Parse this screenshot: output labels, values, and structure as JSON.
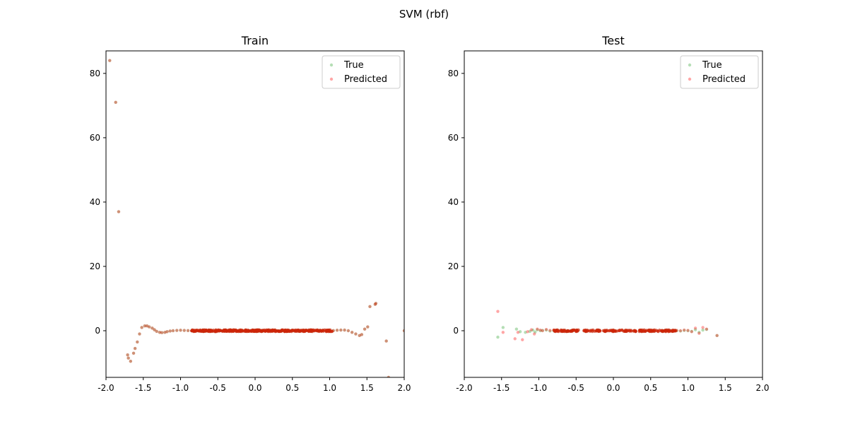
{
  "figure": {
    "title": "SVM (rbf)"
  },
  "colors": {
    "true": "#2ca02c",
    "predicted": "#ff0000"
  },
  "chart_data": [
    {
      "type": "scatter",
      "title": "Train",
      "xlim": [
        -2.0,
        2.0
      ],
      "ylim": [
        -14.5,
        87
      ],
      "xticks": [
        "-2.0",
        "-1.5",
        "-1.0",
        "-0.5",
        "0.0",
        "0.5",
        "1.0",
        "1.5",
        "2.0"
      ],
      "xtick_values": [
        -2.0,
        -1.5,
        -1.0,
        -0.5,
        0.0,
        0.5,
        1.0,
        1.5,
        2.0
      ],
      "yticks": [
        "0",
        "20",
        "40",
        "60",
        "80"
      ],
      "ytick_values": [
        0,
        20,
        40,
        60,
        80
      ],
      "legend": {
        "placement": "upper-right",
        "entries": [
          "True",
          "Predicted"
        ]
      },
      "series": [
        {
          "name": "True",
          "x": [
            -1.95,
            -1.87,
            -1.83,
            -1.71,
            -1.7,
            -1.67,
            -1.63,
            -1.61,
            -1.58,
            -1.55,
            -1.52,
            -1.48,
            -1.45,
            -1.42,
            -1.38,
            -1.35,
            -1.32,
            -1.28,
            -1.25,
            -1.21,
            -1.18,
            -1.14,
            -1.1,
            -1.05,
            -1.0,
            -0.95,
            -0.9,
            -0.85,
            1.05,
            1.1,
            1.15,
            1.2,
            1.25,
            1.3,
            1.35,
            1.4,
            1.43,
            1.47,
            1.51,
            1.54,
            1.61,
            1.62,
            1.76,
            1.79,
            2.0
          ],
          "y": [
            84,
            71,
            37,
            -7.5,
            -8.5,
            -9.5,
            -7,
            -5.5,
            -3.5,
            -1,
            1,
            1.5,
            1.5,
            1.2,
            0.8,
            0.3,
            -0.2,
            -0.5,
            -0.6,
            -0.5,
            -0.3,
            -0.1,
            0.0,
            0.1,
            0.15,
            0.1,
            0.05,
            0.0,
            0.05,
            0.15,
            0.2,
            0.2,
            0.0,
            -0.5,
            -1.0,
            -1.5,
            -1.2,
            0.5,
            1.2,
            7.5,
            8.2,
            8.5,
            -3.2,
            -14.5,
            0.0
          ]
        },
        {
          "name": "Predicted",
          "x": [
            -1.95,
            -1.87,
            -1.83,
            -1.71,
            -1.7,
            -1.67,
            -1.63,
            -1.61,
            -1.58,
            -1.55,
            -1.52,
            -1.48,
            -1.45,
            -1.42,
            -1.38,
            -1.35,
            -1.32,
            -1.28,
            -1.25,
            -1.21,
            -1.18,
            -1.14,
            -1.1,
            -1.05,
            -1.0,
            -0.95,
            -0.9,
            -0.85,
            1.05,
            1.1,
            1.15,
            1.2,
            1.25,
            1.3,
            1.35,
            1.4,
            1.43,
            1.47,
            1.51,
            1.54,
            1.61,
            1.62,
            1.76,
            1.79,
            2.0
          ],
          "y": [
            84,
            71,
            37,
            -7.5,
            -8.5,
            -9.5,
            -7,
            -5.5,
            -3.5,
            -1,
            1,
            1.5,
            1.5,
            1.2,
            0.8,
            0.3,
            -0.2,
            -0.5,
            -0.6,
            -0.5,
            -0.3,
            -0.1,
            0.0,
            0.1,
            0.15,
            0.1,
            0.05,
            0.0,
            0.05,
            0.15,
            0.2,
            0.2,
            0.0,
            -0.5,
            -1.0,
            -1.5,
            -1.2,
            0.5,
            1.2,
            7.5,
            8.2,
            8.5,
            -3.2,
            -14.5,
            0.0
          ]
        }
      ],
      "dense_band": {
        "x_range": [
          -0.85,
          1.05
        ],
        "y": 0.0,
        "description_series": [
          "True",
          "Predicted"
        ]
      }
    },
    {
      "type": "scatter",
      "title": "Test",
      "xlim": [
        -2.0,
        2.0
      ],
      "ylim": [
        -14.5,
        87
      ],
      "xticks": [
        "-2.0",
        "-1.5",
        "-1.0",
        "-0.5",
        "0.0",
        "0.5",
        "1.0",
        "1.5",
        "2.0"
      ],
      "xtick_values": [
        -2.0,
        -1.5,
        -1.0,
        -0.5,
        0.0,
        0.5,
        1.0,
        1.5,
        2.0
      ],
      "yticks": [
        "0",
        "20",
        "40",
        "60",
        "80"
      ],
      "ytick_values": [
        0,
        20,
        40,
        60,
        80
      ],
      "legend": {
        "placement": "upper-right",
        "entries": [
          "True",
          "Predicted"
        ]
      },
      "series": [
        {
          "name": "True",
          "x": [
            -1.55,
            -1.48,
            -1.3,
            -1.25,
            -1.18,
            -1.12,
            -1.08,
            -1.05,
            -1.02,
            -0.98,
            -0.95,
            -0.9,
            -0.85,
            -0.8,
            0.85,
            0.9,
            0.95,
            1.0,
            1.05,
            1.1,
            1.15,
            1.2,
            1.25,
            1.39
          ],
          "y": [
            -2.0,
            1.0,
            0.5,
            -0.3,
            -0.5,
            -0.2,
            0.2,
            -0.4,
            0.3,
            0.0,
            0.1,
            0.2,
            -0.1,
            0.0,
            0.0,
            -0.1,
            0.1,
            0.0,
            -0.2,
            0.3,
            -0.5,
            0.2,
            0.4,
            -1.5
          ]
        },
        {
          "name": "Predicted",
          "x": [
            -1.55,
            -1.48,
            -1.32,
            -1.28,
            -1.22,
            -1.15,
            -1.1,
            -1.06,
            -1.02,
            -0.98,
            -0.95,
            -0.9,
            -0.85,
            -0.8,
            0.85,
            0.9,
            0.95,
            1.0,
            1.05,
            1.1,
            1.15,
            1.2,
            1.25,
            1.39
          ],
          "y": [
            6.0,
            -0.5,
            -2.5,
            -0.5,
            -2.8,
            -0.3,
            0.3,
            -1.0,
            0.5,
            0.2,
            0.0,
            0.4,
            0.1,
            0.2,
            0.1,
            0.0,
            0.2,
            0.1,
            -0.3,
            0.8,
            -0.8,
            1.0,
            0.5,
            -1.5
          ]
        }
      ],
      "dense_band": {
        "x_range": [
          -0.8,
          0.85
        ],
        "y": 0.0,
        "description_series": [
          "True",
          "Predicted"
        ]
      }
    }
  ]
}
